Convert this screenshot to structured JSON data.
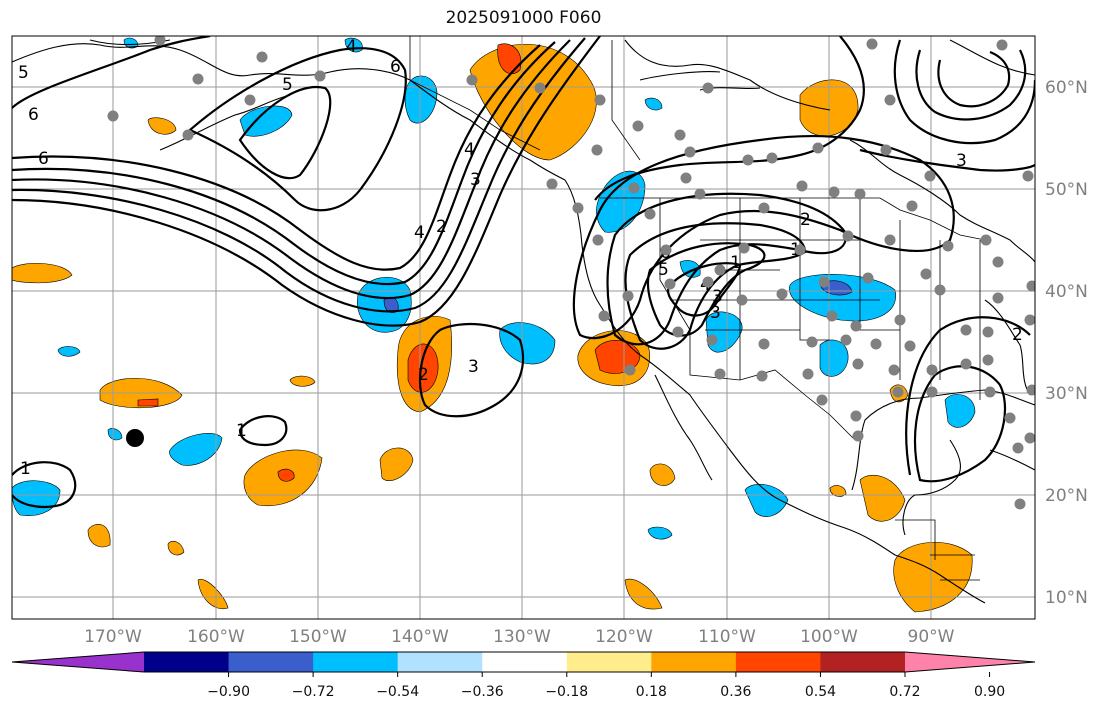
{
  "title": "2025091000 F060",
  "lat_labels": [
    "60°N",
    "50°N",
    "40°N",
    "30°N",
    "20°N",
    "10°N"
  ],
  "lon_labels": [
    "170°W",
    "160°W",
    "150°W",
    "140°W",
    "130°W",
    "120°W",
    "110°W",
    "100°W",
    "90°W"
  ],
  "colorbar": {
    "ticks": [
      "−0.90",
      "−0.72",
      "−0.54",
      "−0.36",
      "−0.18",
      "0.18",
      "0.36",
      "0.54",
      "0.72",
      "0.90"
    ],
    "colors": [
      "#9932cc",
      "#00008b",
      "#3a5fcd",
      "#00bfff",
      "#b0e2ff",
      "#ffffff",
      "#ffec8b",
      "#ffa500",
      "#ff4500",
      "#b22222",
      "#ff82ab"
    ]
  },
  "contour_labels": [
    "6",
    "6",
    "5",
    "4",
    "6",
    "5",
    "4",
    "3",
    "2",
    "4",
    "3",
    "2",
    "1",
    "3",
    "6",
    "5",
    "4",
    "3",
    "2",
    "1",
    "2",
    "1",
    "1",
    "3"
  ],
  "station_marker": "black-dot"
}
